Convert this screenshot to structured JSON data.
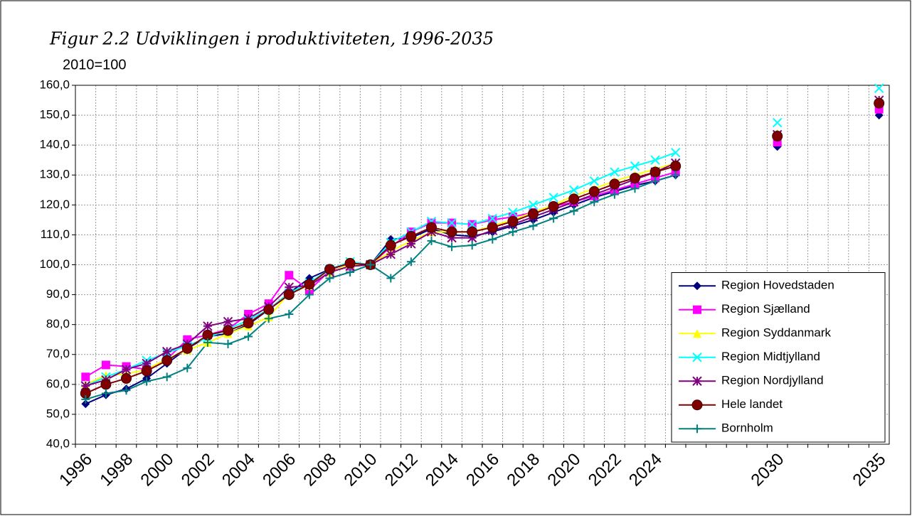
{
  "chart_data": {
    "type": "line",
    "title": "Figur 2.2 Udviklingen i produktiviteten, 1996-2035",
    "subtitle": "2010=100",
    "categories": [
      "1996",
      null,
      "1998",
      null,
      "2000",
      null,
      "2002",
      null,
      "2004",
      null,
      "2006",
      null,
      "2008",
      null,
      "2010",
      null,
      "2012",
      null,
      "2014",
      null,
      "2016",
      null,
      "2018",
      null,
      "2020",
      null,
      "2022",
      null,
      "2024",
      null,
      null,
      null,
      null,
      null,
      "2030",
      null,
      null,
      null,
      null,
      "2035"
    ],
    "series": [
      {
        "name": "Region Hovedstaden",
        "color": "#000080",
        "marker": "diamond",
        "values": [
          53.5,
          56.5,
          58.5,
          62,
          67,
          72,
          76,
          77,
          80,
          85,
          90.5,
          95.5,
          98.5,
          100.5,
          100,
          108.5,
          109,
          112,
          110,
          109.5,
          111,
          113,
          115,
          117.5,
          120,
          122.5,
          124.5,
          126.5,
          128,
          130,
          null,
          null,
          null,
          null,
          139.5,
          null,
          null,
          null,
          null,
          150
        ]
      },
      {
        "name": "Region Sjælland",
        "color": "#ff00ff",
        "marker": "square",
        "values": [
          62.5,
          66.5,
          66,
          65,
          68.5,
          75,
          76.5,
          78.5,
          83.5,
          87,
          96.5,
          91.5,
          98,
          99.5,
          100,
          106,
          111,
          114,
          114,
          113.5,
          115,
          116,
          117.5,
          119.5,
          121,
          123,
          125,
          127,
          129,
          131,
          null,
          null,
          null,
          null,
          141,
          null,
          null,
          null,
          null,
          152
        ]
      },
      {
        "name": "Region Syddanmark",
        "color": "#ffff00",
        "marker": "triangle",
        "values": [
          60,
          63,
          63.5,
          65,
          68.5,
          71.5,
          74,
          77,
          79.5,
          82.5,
          90.5,
          93,
          97.5,
          100,
          100,
          104.5,
          108,
          111,
          111,
          111,
          113,
          115,
          117.5,
          120,
          123,
          125.5,
          128,
          130,
          132,
          134,
          null,
          null,
          null,
          null,
          144,
          null,
          null,
          null,
          null,
          155
        ]
      },
      {
        "name": "Region Midtjylland",
        "color": "#00ffff",
        "marker": "x",
        "values": [
          59.5,
          62.5,
          65,
          68,
          70.5,
          73,
          75.5,
          78.5,
          81.5,
          85,
          90.5,
          94,
          98.5,
          101,
          100,
          107.5,
          111,
          114.5,
          114,
          113.5,
          115.5,
          117.5,
          120,
          122.5,
          125,
          128,
          131,
          133,
          135,
          137.5,
          null,
          null,
          null,
          null,
          147.5,
          null,
          null,
          null,
          null,
          159
        ]
      },
      {
        "name": "Region Nordjylland",
        "color": "#800080",
        "marker": "star",
        "values": [
          59.5,
          61.5,
          65,
          67,
          71,
          73.5,
          79.5,
          81,
          82,
          86,
          92.5,
          93,
          97.5,
          99.5,
          100,
          103.5,
          107,
          111,
          109,
          109,
          111.5,
          113.5,
          116,
          118.5,
          121,
          123.5,
          126,
          128.5,
          131,
          134,
          null,
          null,
          null,
          null,
          143.5,
          null,
          null,
          null,
          null,
          155
        ]
      },
      {
        "name": "Hele landet",
        "color": "#800000",
        "marker": "circle",
        "values": [
          57,
          60,
          62,
          64.5,
          68,
          72,
          76.5,
          78,
          80.5,
          85,
          90,
          93.5,
          98.5,
          100.5,
          100,
          106.5,
          109.5,
          112.5,
          111,
          111,
          112.5,
          114.5,
          117,
          119.5,
          122,
          124.5,
          127,
          129,
          131,
          133,
          null,
          null,
          null,
          null,
          143,
          null,
          null,
          null,
          null,
          154
        ]
      },
      {
        "name": "Bornholm",
        "color": "#008080",
        "marker": "plus",
        "values": [
          55,
          57,
          58,
          61,
          62.5,
          65.5,
          74,
          73.5,
          76,
          82,
          83.5,
          90,
          95.5,
          97.5,
          100,
          95.5,
          101,
          108,
          106,
          106.5,
          108.5,
          111,
          113,
          115.5,
          118,
          121,
          123.5,
          125.5,
          128,
          130,
          null,
          null,
          null,
          null,
          null,
          null,
          null,
          null,
          null,
          null
        ]
      }
    ],
    "ylim": [
      40,
      160
    ],
    "yticks": [
      {
        "value": 40,
        "label": "40,0"
      },
      {
        "value": 50,
        "label": "50,0"
      },
      {
        "value": 60,
        "label": "60,0"
      },
      {
        "value": 70,
        "label": "70,0"
      },
      {
        "value": 80,
        "label": "80,0"
      },
      {
        "value": 90,
        "label": "90,0"
      },
      {
        "value": 100,
        "label": "100,0"
      },
      {
        "value": 110,
        "label": "110,0"
      },
      {
        "value": 120,
        "label": "120,0"
      },
      {
        "value": 130,
        "label": "130,0"
      },
      {
        "value": 140,
        "label": "140,0"
      },
      {
        "value": 150,
        "label": "150,0"
      },
      {
        "value": 160,
        "label": "160,0"
      }
    ],
    "grid": true,
    "legend": "lower right"
  }
}
